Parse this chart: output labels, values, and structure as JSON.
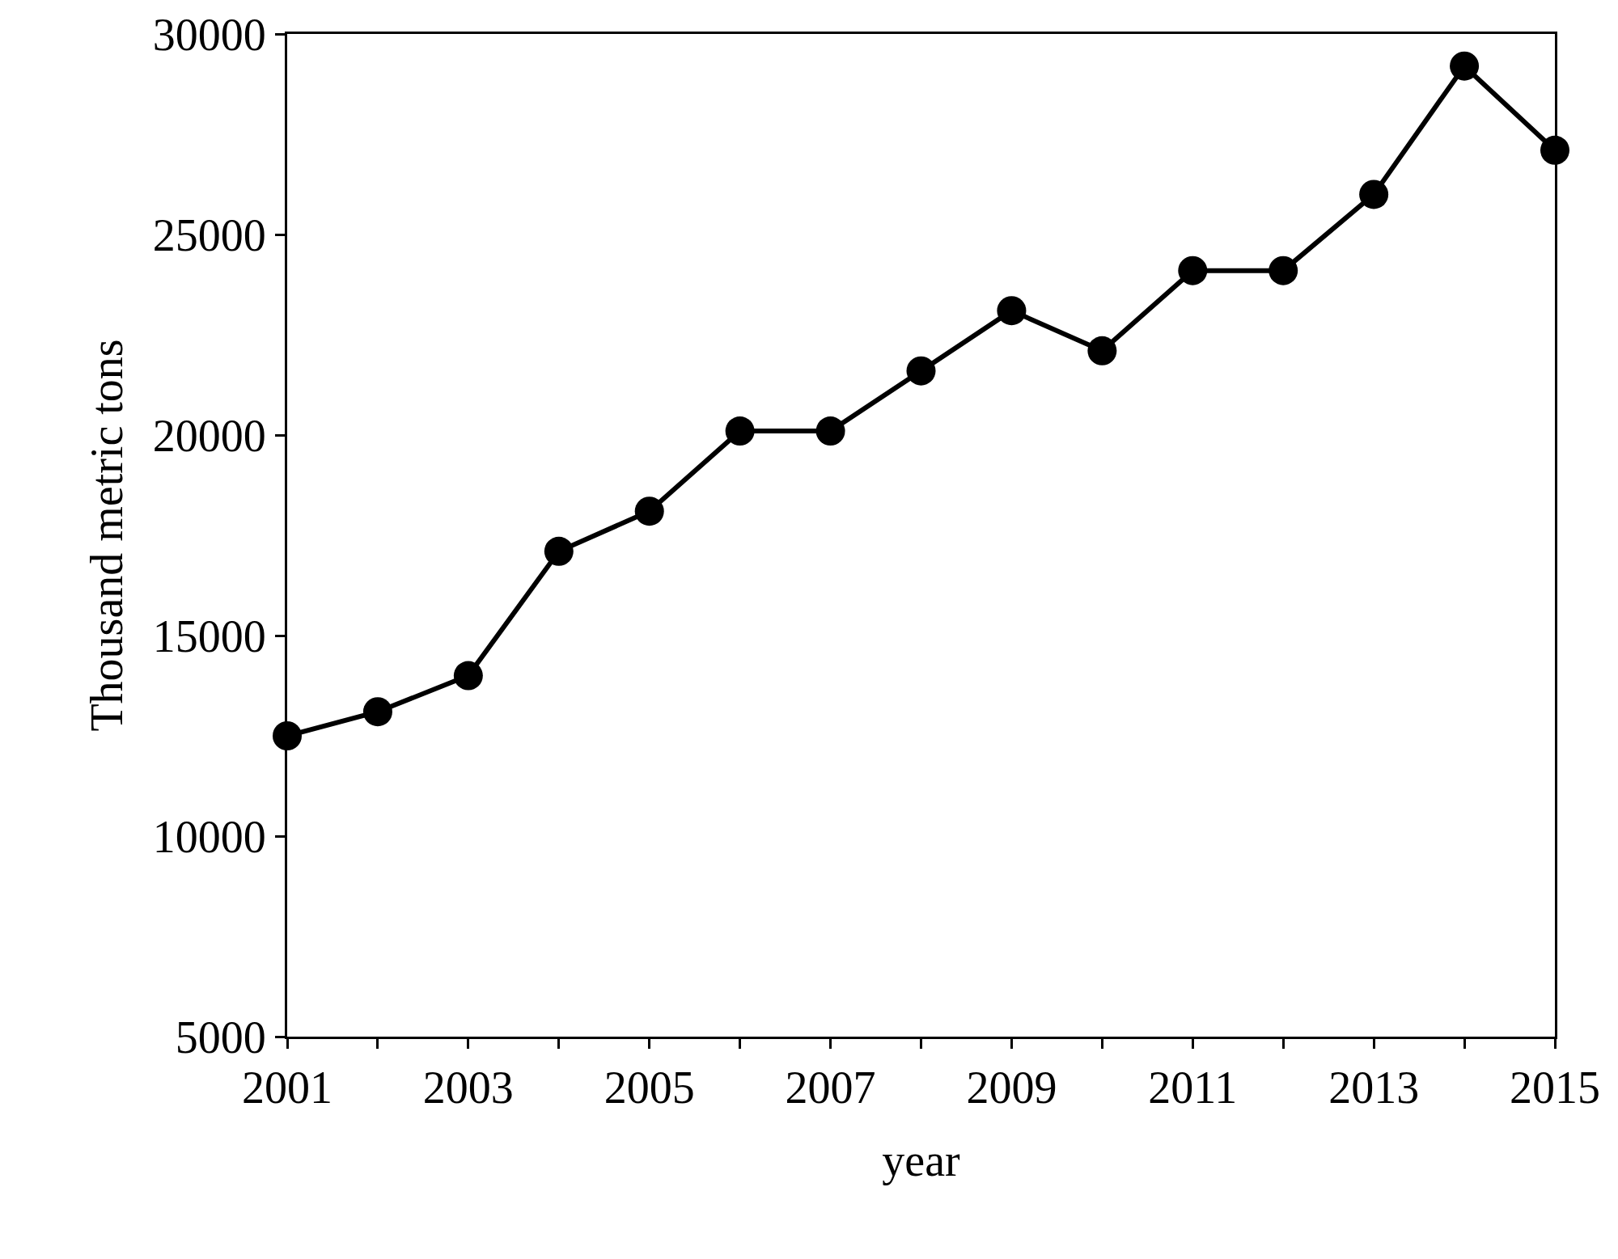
{
  "chart_data": {
    "type": "line",
    "xlabel": "year",
    "ylabel": "Thousand metric tons",
    "x": [
      2001,
      2002,
      2003,
      2004,
      2005,
      2006,
      2007,
      2008,
      2009,
      2010,
      2011,
      2012,
      2013,
      2014,
      2015
    ],
    "series": [
      {
        "color": "#000000",
        "values": [
          12500,
          13100,
          14000,
          17100,
          18100,
          20100,
          20100,
          21600,
          23100,
          22100,
          24100,
          24100,
          26000,
          29200,
          27100
        ]
      }
    ],
    "xlim": [
      2001,
      2015
    ],
    "xticks": [
      2001,
      {
        "value": 2002,
        "label": null
      },
      2003,
      {
        "value": 2004,
        "label": null
      },
      2005,
      {
        "value": 2006,
        "label": null
      },
      2007,
      {
        "value": 2008,
        "label": null
      },
      2009,
      {
        "value": 2010,
        "label": null
      },
      2011,
      {
        "value": 2012,
        "label": null
      },
      2013,
      {
        "value": 2014,
        "label": null
      },
      2015
    ],
    "ylim": [
      5000,
      30000
    ],
    "yticks": [
      5000,
      10000,
      15000,
      20000,
      25000,
      30000
    ],
    "marker": "circle",
    "line_style": "solid"
  }
}
